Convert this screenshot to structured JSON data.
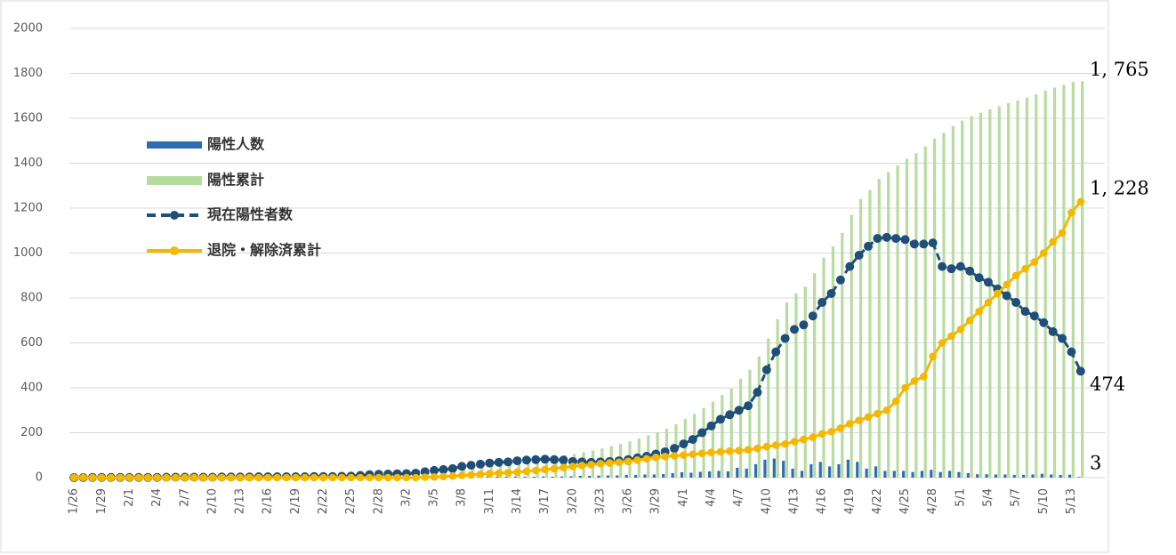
{
  "chart_data": {
    "type": "bar",
    "categories": [
      "1/26",
      null,
      null,
      "1/29",
      null,
      null,
      "2/1",
      null,
      null,
      "2/4",
      null,
      null,
      "2/7",
      null,
      null,
      "2/10",
      null,
      null,
      "2/13",
      null,
      null,
      "2/16",
      null,
      null,
      "2/19",
      null,
      null,
      "2/22",
      null,
      null,
      "2/25",
      null,
      null,
      "2/28",
      null,
      null,
      "3/2",
      null,
      null,
      "3/5",
      null,
      null,
      "3/8",
      null,
      null,
      "3/11",
      null,
      null,
      "3/14",
      null,
      null,
      "3/17",
      null,
      null,
      "3/20",
      null,
      null,
      "3/23",
      null,
      null,
      "3/26",
      null,
      null,
      "3/29",
      null,
      null,
      "4/1",
      null,
      null,
      "4/4",
      null,
      null,
      "4/7",
      null,
      null,
      "4/10",
      null,
      null,
      "4/13",
      null,
      null,
      "4/16",
      null,
      null,
      "4/19",
      null,
      null,
      "4/22",
      null,
      null,
      "4/25",
      null,
      null,
      "4/28",
      null,
      null,
      "5/1",
      null,
      null,
      "5/4",
      null,
      null,
      "5/7",
      null,
      null,
      "5/10",
      null,
      null,
      "5/13",
      null
    ],
    "series": [
      {
        "name": "陽性人数",
        "type": "bar",
        "color": "#2e6db4",
        "values": [
          0,
          0,
          1,
          0,
          0,
          0,
          0,
          0,
          0,
          0,
          1,
          0,
          0,
          0,
          0,
          0,
          1,
          0,
          0,
          0,
          1,
          0,
          0,
          0,
          0,
          0,
          1,
          0,
          0,
          0,
          2,
          3,
          4,
          3,
          2,
          1,
          2,
          3,
          5,
          6,
          5,
          5,
          4,
          5,
          4,
          5,
          4,
          4,
          5,
          4,
          4,
          5,
          4,
          5,
          6,
          8,
          8,
          9,
          10,
          10,
          12,
          12,
          14,
          14,
          16,
          20,
          24,
          22,
          26,
          28,
          30,
          28,
          44,
          40,
          60,
          80,
          85,
          75,
          40,
          30,
          60,
          70,
          50,
          60,
          80,
          70,
          40,
          50,
          30,
          30,
          30,
          25,
          30,
          35,
          25,
          30,
          25,
          20,
          15,
          15,
          14,
          14,
          12,
          12,
          14,
          17,
          14,
          12,
          13,
          3
        ]
      },
      {
        "name": "陽性累計",
        "type": "bar",
        "color": "#b7dca0",
        "values": [
          0,
          0,
          1,
          1,
          1,
          1,
          1,
          1,
          1,
          1,
          2,
          2,
          2,
          2,
          2,
          2,
          3,
          3,
          3,
          3,
          4,
          4,
          4,
          4,
          4,
          4,
          5,
          5,
          5,
          5,
          7,
          10,
          14,
          17,
          19,
          20,
          22,
          25,
          30,
          36,
          41,
          46,
          50,
          55,
          59,
          64,
          68,
          72,
          77,
          81,
          85,
          90,
          94,
          99,
          105,
          113,
          121,
          130,
          140,
          150,
          162,
          174,
          188,
          202,
          218,
          238,
          262,
          284,
          310,
          338,
          368,
          396,
          440,
          480,
          540,
          620,
          705,
          780,
          820,
          850,
          910,
          980,
          1030,
          1090,
          1170,
          1240,
          1280,
          1330,
          1360,
          1390,
          1420,
          1445,
          1475,
          1510,
          1535,
          1565,
          1590,
          1610,
          1625,
          1640,
          1654,
          1668,
          1680,
          1692,
          1706,
          1723,
          1737,
          1749,
          1762,
          1765
        ]
      },
      {
        "name": "現在陽性者数",
        "type": "line",
        "dash": true,
        "color": "#1f4e79",
        "values": [
          0,
          0,
          1,
          1,
          1,
          1,
          1,
          1,
          1,
          1,
          2,
          2,
          2,
          2,
          2,
          2,
          3,
          3,
          3,
          3,
          4,
          4,
          4,
          4,
          4,
          4,
          5,
          5,
          5,
          6,
          7,
          10,
          13,
          15,
          16,
          17,
          18,
          20,
          26,
          32,
          36,
          40,
          50,
          55,
          60,
          65,
          68,
          70,
          75,
          78,
          80,
          82,
          80,
          78,
          72,
          70,
          68,
          70,
          72,
          75,
          80,
          88,
          95,
          105,
          115,
          130,
          150,
          170,
          200,
          230,
          260,
          280,
          300,
          320,
          380,
          480,
          560,
          620,
          660,
          680,
          720,
          780,
          820,
          880,
          940,
          990,
          1030,
          1065,
          1070,
          1065,
          1060,
          1040,
          1040,
          1045,
          940,
          930,
          940,
          920,
          890,
          870,
          840,
          810,
          780,
          740,
          720,
          690,
          650,
          620,
          560,
          474
        ]
      },
      {
        "name": "退院・解除済累計",
        "type": "line",
        "dash": false,
        "color": "#f5b800",
        "values": [
          0,
          0,
          0,
          0,
          0,
          0,
          0,
          0,
          0,
          0,
          0,
          0,
          0,
          0,
          0,
          0,
          0,
          0,
          0,
          0,
          0,
          0,
          0,
          0,
          0,
          0,
          0,
          0,
          0,
          0,
          0,
          0,
          0,
          0,
          0,
          0,
          0,
          0,
          2,
          3,
          5,
          7,
          10,
          12,
          15,
          18,
          20,
          22,
          25,
          28,
          32,
          36,
          40,
          45,
          50,
          54,
          58,
          62,
          65,
          68,
          72,
          78,
          84,
          90,
          94,
          97,
          100,
          104,
          108,
          112,
          115,
          118,
          120,
          124,
          130,
          138,
          145,
          150,
          160,
          170,
          180,
          195,
          205,
          220,
          240,
          255,
          270,
          285,
          300,
          340,
          400,
          430,
          450,
          540,
          600,
          630,
          660,
          700,
          740,
          780,
          820,
          860,
          900,
          930,
          960,
          1000,
          1050,
          1090,
          1180,
          1228
        ]
      }
    ],
    "annotations": [
      "1, 765",
      "1, 228",
      "474",
      "3"
    ],
    "ylim": [
      0,
      2000
    ],
    "yticks": [
      0,
      200,
      400,
      600,
      800,
      1000,
      1200,
      1400,
      1600,
      1800,
      2000
    ],
    "grid": true
  }
}
